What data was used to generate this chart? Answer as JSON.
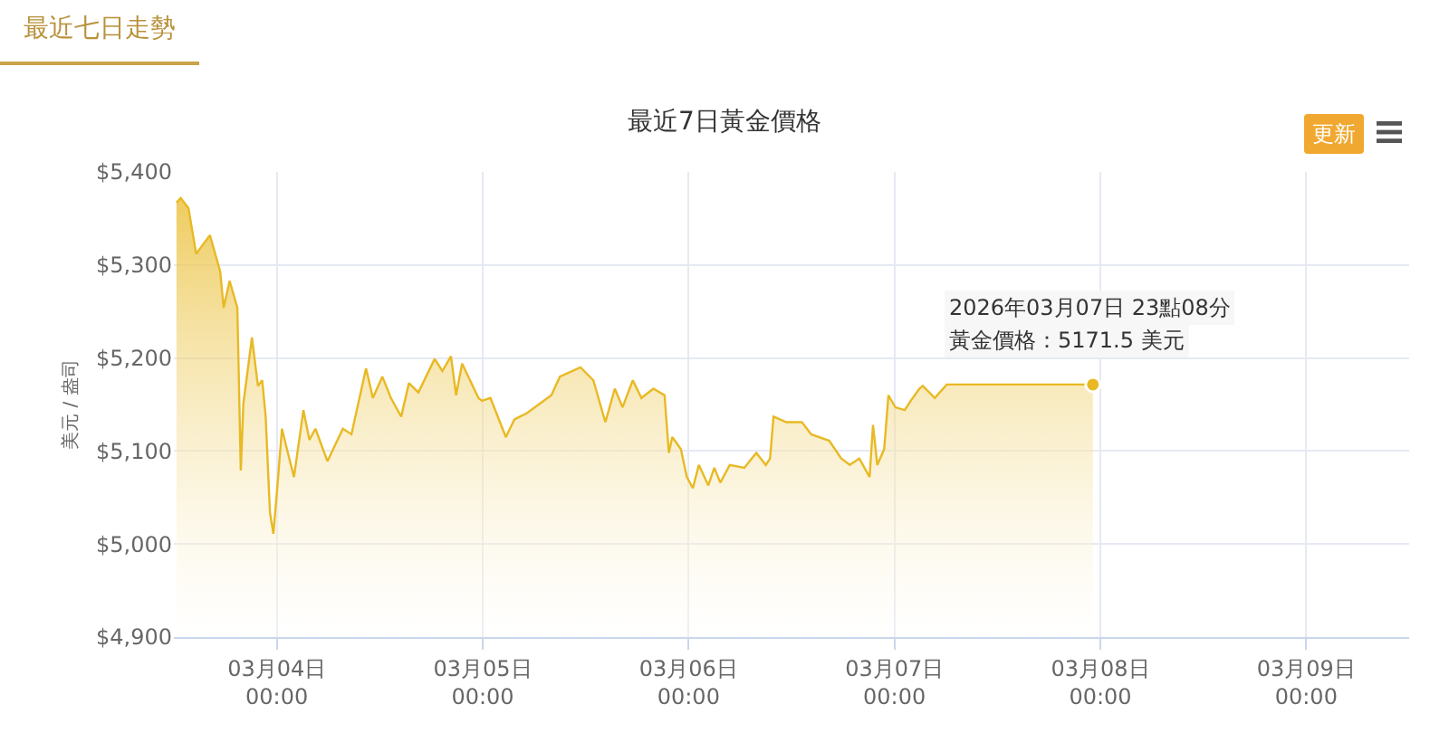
{
  "chart_data": {
    "type": "area",
    "title": "最近7日黃金價格",
    "ylabel": "美元 / 盎司",
    "x": [
      "2026-03-03T12:18",
      "2026-03-03T12:48",
      "2026-03-03T13:42",
      "2026-03-03T14:36",
      "2026-03-03T16:12",
      "2026-03-03T17:24",
      "2026-03-03T17:48",
      "2026-03-03T18:30",
      "2026-03-03T19:24",
      "2026-03-03T19:48",
      "2026-03-03T20:06",
      "2026-03-03T21:06",
      "2026-03-03T21:48",
      "2026-03-03T22:18",
      "2026-03-03T22:42",
      "2026-03-03T23:12",
      "2026-03-03T23:36",
      "2026-03-04T00:06",
      "2026-03-04T00:36",
      "2026-03-04T01:06",
      "2026-03-04T02:00",
      "2026-03-04T03:06",
      "2026-03-04T03:48",
      "2026-03-04T04:30",
      "2026-03-04T05:54",
      "2026-03-04T07:42",
      "2026-03-04T08:42",
      "2026-03-04T10:24",
      "2026-03-04T11:12",
      "2026-03-04T12:18",
      "2026-03-04T13:18",
      "2026-03-04T14:30",
      "2026-03-04T15:24",
      "2026-03-04T16:30",
      "2026-03-04T18:24",
      "2026-03-04T19:18",
      "2026-03-04T20:18",
      "2026-03-04T20:54",
      "2026-03-04T21:36",
      "2026-03-04T23:30",
      "2026-03-04T23:54",
      "2026-03-05T00:54",
      "2026-03-05T02:42",
      "2026-03-05T03:42",
      "2026-03-05T05:12",
      "2026-03-05T08:00",
      "2026-03-05T09:00",
      "2026-03-05T11:24",
      "2026-03-05T12:54",
      "2026-03-05T14:18",
      "2026-03-05T15:24",
      "2026-03-05T16:18",
      "2026-03-05T17:30",
      "2026-03-05T18:30",
      "2026-03-05T19:54",
      "2026-03-05T21:12",
      "2026-03-05T21:42",
      "2026-03-05T22:06",
      "2026-03-05T23:06",
      "2026-03-05T23:48",
      "2026-03-06T00:30",
      "2026-03-06T01:12",
      "2026-03-06T02:18",
      "2026-03-06T03:00",
      "2026-03-06T03:42",
      "2026-03-06T04:48",
      "2026-03-06T06:30",
      "2026-03-06T07:54",
      "2026-03-06T09:00",
      "2026-03-06T09:30",
      "2026-03-06T09:54",
      "2026-03-06T11:24",
      "2026-03-06T13:12",
      "2026-03-06T14:18",
      "2026-03-06T16:24",
      "2026-03-06T17:48",
      "2026-03-06T18:48",
      "2026-03-06T19:54",
      "2026-03-06T21:06",
      "2026-03-06T21:30",
      "2026-03-06T22:00",
      "2026-03-06T22:48",
      "2026-03-06T23:18",
      "2026-03-07T00:06",
      "2026-03-07T01:12",
      "2026-03-07T01:54",
      "2026-03-07T02:54",
      "2026-03-07T03:18",
      "2026-03-07T04:42",
      "2026-03-07T06:06",
      "2026-03-07T23:08"
    ],
    "series": [
      {
        "color": "#e8b923",
        "values": [
          5367,
          5372,
          5361,
          5312,
          5332,
          5293,
          5254,
          5283,
          5254,
          5079,
          5151,
          5222,
          5170,
          5176,
          5137,
          5034,
          5011,
          5066,
          5124,
          5105,
          5072,
          5144,
          5112,
          5124,
          5089,
          5124,
          5118,
          5189,
          5157,
          5180,
          5157,
          5137,
          5173,
          5163,
          5199,
          5186,
          5202,
          5160,
          5194,
          5157,
          5154,
          5157,
          5115,
          5134,
          5141,
          5160,
          5180,
          5190,
          5176,
          5131,
          5167,
          5147,
          5176,
          5157,
          5167,
          5160,
          5098,
          5115,
          5102,
          5072,
          5060,
          5085,
          5063,
          5082,
          5066,
          5085,
          5082,
          5098,
          5085,
          5092,
          5137,
          5131,
          5131,
          5118,
          5111,
          5092,
          5085,
          5092,
          5072,
          5128,
          5085,
          5102,
          5160,
          5147,
          5144,
          5154,
          5167,
          5170,
          5157,
          5171.5,
          5171.5
        ]
      }
    ],
    "xlim": [
      "2026-03-03T12:00",
      "2026-03-09T12:00"
    ],
    "xticks": [
      {
        "value": "2026-03-04T00:00",
        "label": "03月04日\n00:00"
      },
      {
        "value": "2026-03-05T00:00",
        "label": "03月05日\n00:00"
      },
      {
        "value": "2026-03-06T00:00",
        "label": "03月06日\n00:00"
      },
      {
        "value": "2026-03-07T00:00",
        "label": "03月07日\n00:00"
      },
      {
        "value": "2026-03-08T00:00",
        "label": "03月08日\n00:00"
      },
      {
        "value": "2026-03-09T00:00",
        "label": "03月09日\n00:00"
      }
    ],
    "ylim": [
      4900,
      5400
    ],
    "yticks": [
      {
        "value": 4900,
        "label": "$4,900"
      },
      {
        "value": 5000,
        "label": "$5,000"
      },
      {
        "value": 5100,
        "label": "$5,100"
      },
      {
        "value": 5200,
        "label": "$5,200"
      },
      {
        "value": 5300,
        "label": "$5,300"
      },
      {
        "value": 5400,
        "label": "$5,400"
      }
    ],
    "grid": true,
    "annotations": [
      "最近七日走勢",
      "更新",
      {
        "text": "2026年03月07日 23點08分",
        "x": "2026-03-07T23:08",
        "y": 5171.5
      },
      {
        "text": "黃金價格：5171.5 美元",
        "x": "2026-03-07T23:08",
        "y": 5171.5
      }
    ]
  }
}
